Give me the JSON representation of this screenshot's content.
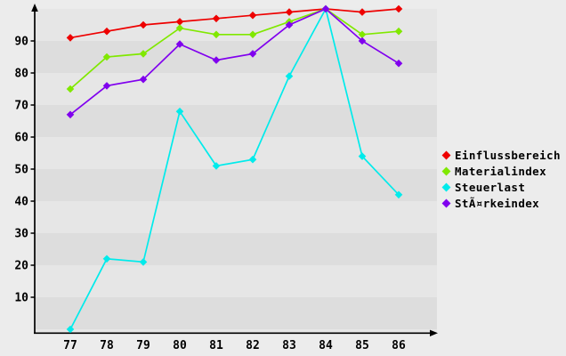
{
  "page": {
    "background": "#ececec",
    "band_light": "#e6e6e6",
    "band_dark": "#dddddd",
    "axis_color": "#000000",
    "text_color": "#000000"
  },
  "chart_data": {
    "type": "line",
    "title": "",
    "xlabel": "",
    "ylabel": "",
    "x": [
      77,
      78,
      79,
      80,
      81,
      82,
      83,
      84,
      85,
      86
    ],
    "y_ticks": [
      90,
      80,
      70,
      60,
      50,
      40,
      30,
      20,
      10
    ],
    "ylim": [
      0,
      101
    ],
    "grid": "banded-background",
    "legend_position": "right",
    "marker": "diamond",
    "series": [
      {
        "name": "Einflussbereich",
        "color": "#ee0000",
        "values": [
          91,
          93,
          95,
          96,
          97,
          98,
          99,
          100,
          99,
          100
        ]
      },
      {
        "name": "Materialindex",
        "color": "#80e800",
        "values": [
          75,
          85,
          86,
          94,
          92,
          92,
          96,
          100,
          92,
          93
        ]
      },
      {
        "name": "Steuerlast",
        "color": "#00ebeb",
        "values": [
          0,
          22,
          21,
          68,
          51,
          53,
          79,
          100,
          54,
          42
        ]
      },
      {
        "name": "StÃ¤rkeindex",
        "color": "#8000ee",
        "values": [
          67,
          76,
          78,
          89,
          84,
          86,
          95,
          100,
          90,
          83
        ]
      }
    ]
  }
}
